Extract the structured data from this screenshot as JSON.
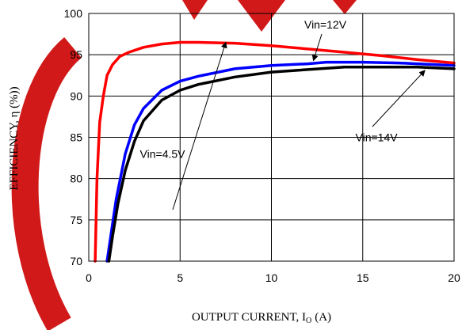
{
  "chart_data": {
    "type": "line",
    "title": "",
    "xlabel": "OUTPUT CURRENT, I",
    "xlabel_sub": "O",
    "xlabel_unit": "(A)",
    "ylabel": "EFFICIENCY, η  (%))",
    "xlim": [
      0,
      20
    ],
    "ylim": [
      70,
      100
    ],
    "xticks": [
      "0",
      "5",
      "10",
      "15",
      "20"
    ],
    "yticks": [
      "70",
      "75",
      "80",
      "85",
      "90",
      "95",
      "100"
    ],
    "grid": true,
    "watermark_colors": [
      "#cc0000"
    ],
    "series": [
      {
        "name": "Vin=12V",
        "color": "#0000ff",
        "x": [
          1.0,
          1.2,
          1.5,
          2.0,
          2.5,
          3.0,
          4.0,
          5.0,
          6.0,
          8.0,
          10.0,
          12.0,
          13.0,
          15.0,
          17.0,
          20.0
        ],
        "y": [
          70.0,
          73.0,
          77.5,
          83.0,
          86.5,
          88.5,
          90.7,
          91.8,
          92.4,
          93.3,
          93.7,
          93.9,
          94.1,
          94.1,
          94.0,
          93.7
        ]
      },
      {
        "name": "Vin=14V",
        "color": "#000000",
        "x": [
          1.1,
          1.3,
          1.6,
          2.0,
          2.5,
          3.0,
          4.0,
          5.0,
          6.0,
          8.0,
          10.0,
          12.0,
          14.0,
          16.0,
          18.0,
          20.0
        ],
        "y": [
          70.0,
          73.0,
          77.0,
          81.0,
          84.5,
          87.0,
          89.5,
          90.7,
          91.4,
          92.3,
          92.9,
          93.2,
          93.5,
          93.5,
          93.5,
          93.3
        ]
      },
      {
        "name": "Vin=4.5V",
        "color": "#ff0000",
        "x": [
          0.35,
          0.45,
          0.6,
          0.8,
          1.0,
          1.3,
          1.7,
          2.2,
          3.0,
          4.0,
          5.0,
          6.0,
          8.0,
          10.0,
          12.0,
          14.0,
          16.0,
          18.0,
          20.0
        ],
        "y": [
          70.0,
          80.0,
          86.8,
          90.0,
          92.5,
          93.8,
          94.8,
          95.3,
          95.9,
          96.3,
          96.5,
          96.5,
          96.4,
          96.1,
          95.7,
          95.3,
          94.9,
          94.4,
          94.0
        ]
      }
    ],
    "annotations": [
      {
        "text": "Vin=12V",
        "x": 11.8,
        "y": 98.2,
        "arrow_to_x": 12.3,
        "arrow_to_y": 94.3
      },
      {
        "text": "Vin=14V",
        "x": 14.6,
        "y": 84.5,
        "arrow_to_x": 18.4,
        "arrow_to_y": 93.1
      },
      {
        "text": "Vin=4.5V",
        "x": 2.8,
        "y": 82.5,
        "arrow_to_x": 7.5,
        "arrow_to_y": 96.5
      }
    ]
  }
}
